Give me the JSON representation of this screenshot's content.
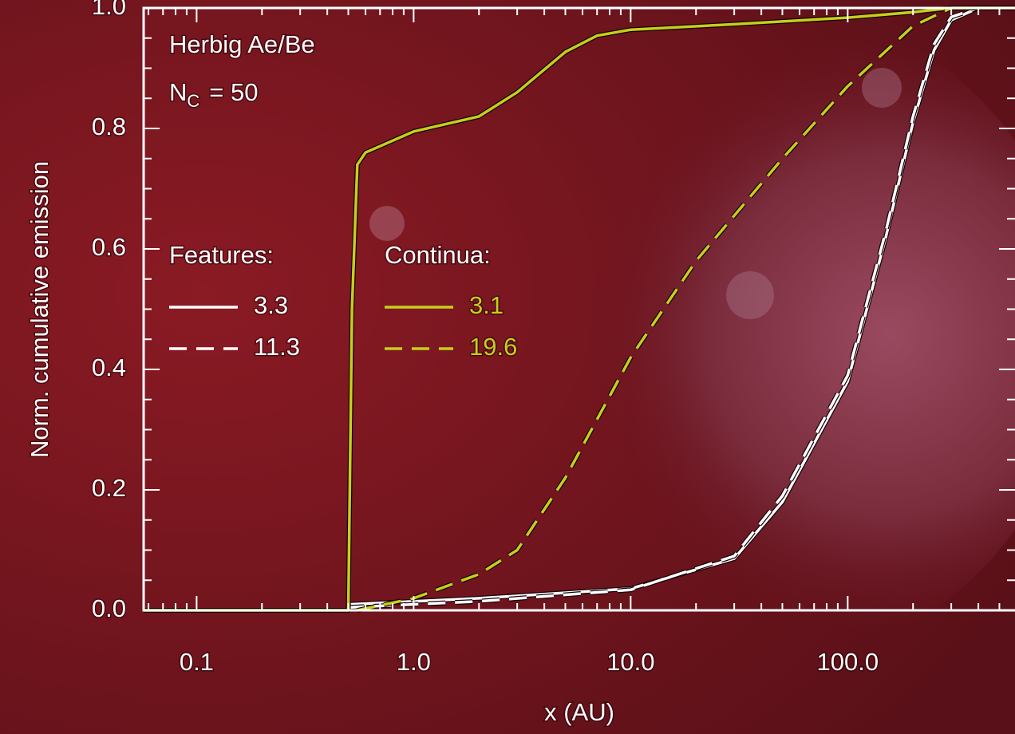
{
  "chart_data": {
    "type": "line",
    "ylabel": "Norm. cumulative emission",
    "xlabel": "x (AU)",
    "annotation": "Herbig Ae/Be",
    "nc_label": {
      "main": "N",
      "sub": "C",
      "tail": "= 50"
    },
    "legend_groups": [
      "Features:",
      "Continua:"
    ],
    "xscale": "log",
    "xlim": [
      0.057,
      590
    ],
    "ylim": [
      0,
      1
    ],
    "xticks": [
      {
        "value": 0.1,
        "label": "0.1"
      },
      {
        "value": 1,
        "label": "1.0"
      },
      {
        "value": 10,
        "label": "10.0"
      },
      {
        "value": 100,
        "label": "100.0"
      }
    ],
    "xminorticks": [
      0.06,
      0.07,
      0.08,
      0.09,
      0.2,
      0.3,
      0.4,
      0.5,
      0.6,
      0.7,
      0.8,
      0.9,
      2,
      3,
      4,
      5,
      6,
      7,
      8,
      9,
      20,
      30,
      40,
      50,
      60,
      70,
      80,
      90,
      200,
      300,
      400,
      500
    ],
    "yticks": [
      {
        "value": 0,
        "label": "0.0"
      },
      {
        "value": 0.2,
        "label": "0.2"
      },
      {
        "value": 0.4,
        "label": "0.4"
      },
      {
        "value": 0.6,
        "label": "0.6"
      },
      {
        "value": 0.8,
        "label": "0.8"
      },
      {
        "value": 1,
        "label": "1.0"
      }
    ],
    "yminorticks": [
      0.05,
      0.1,
      0.15,
      0.25,
      0.3,
      0.35,
      0.45,
      0.5,
      0.55,
      0.65,
      0.7,
      0.75,
      0.85,
      0.9,
      0.95
    ],
    "series": [
      {
        "name": "3.3",
        "group": 0,
        "color": "#ffffff",
        "dash": false,
        "x": [
          0.057,
          0.5,
          0.51,
          2,
          10,
          30,
          50,
          100,
          150,
          200,
          250,
          300,
          400,
          590
        ],
        "values": [
          0,
          0,
          0.01,
          0.02,
          0.036,
          0.086,
          0.18,
          0.38,
          0.62,
          0.81,
          0.93,
          0.98,
          1,
          1
        ]
      },
      {
        "name": "11.3",
        "group": 0,
        "color": "#ffffff",
        "dash": true,
        "x": [
          0.5,
          0.51,
          2,
          10,
          30,
          50,
          100,
          150,
          200,
          250,
          300,
          400,
          590
        ],
        "values": [
          0,
          0.005,
          0.015,
          0.034,
          0.09,
          0.19,
          0.39,
          0.63,
          0.82,
          0.94,
          0.985,
          1,
          1
        ]
      },
      {
        "name": "3.1",
        "group": 1,
        "color": "#c4cf1c",
        "dash": false,
        "x": [
          0.057,
          0.5,
          0.52,
          0.55,
          0.6,
          1,
          2,
          3,
          5,
          7,
          10,
          30,
          100,
          200,
          300,
          590
        ],
        "values": [
          0,
          0,
          0.5,
          0.74,
          0.76,
          0.795,
          0.82,
          0.86,
          0.927,
          0.954,
          0.964,
          0.973,
          0.984,
          0.993,
          1,
          1
        ]
      },
      {
        "name": "19.6",
        "group": 1,
        "color": "#c4cf1c",
        "dash": true,
        "x": [
          0.55,
          1,
          2,
          3,
          5,
          10,
          20,
          50,
          100,
          200,
          300
        ],
        "values": [
          0,
          0.02,
          0.06,
          0.1,
          0.22,
          0.42,
          0.58,
          0.75,
          0.87,
          0.97,
          1
        ]
      }
    ]
  }
}
